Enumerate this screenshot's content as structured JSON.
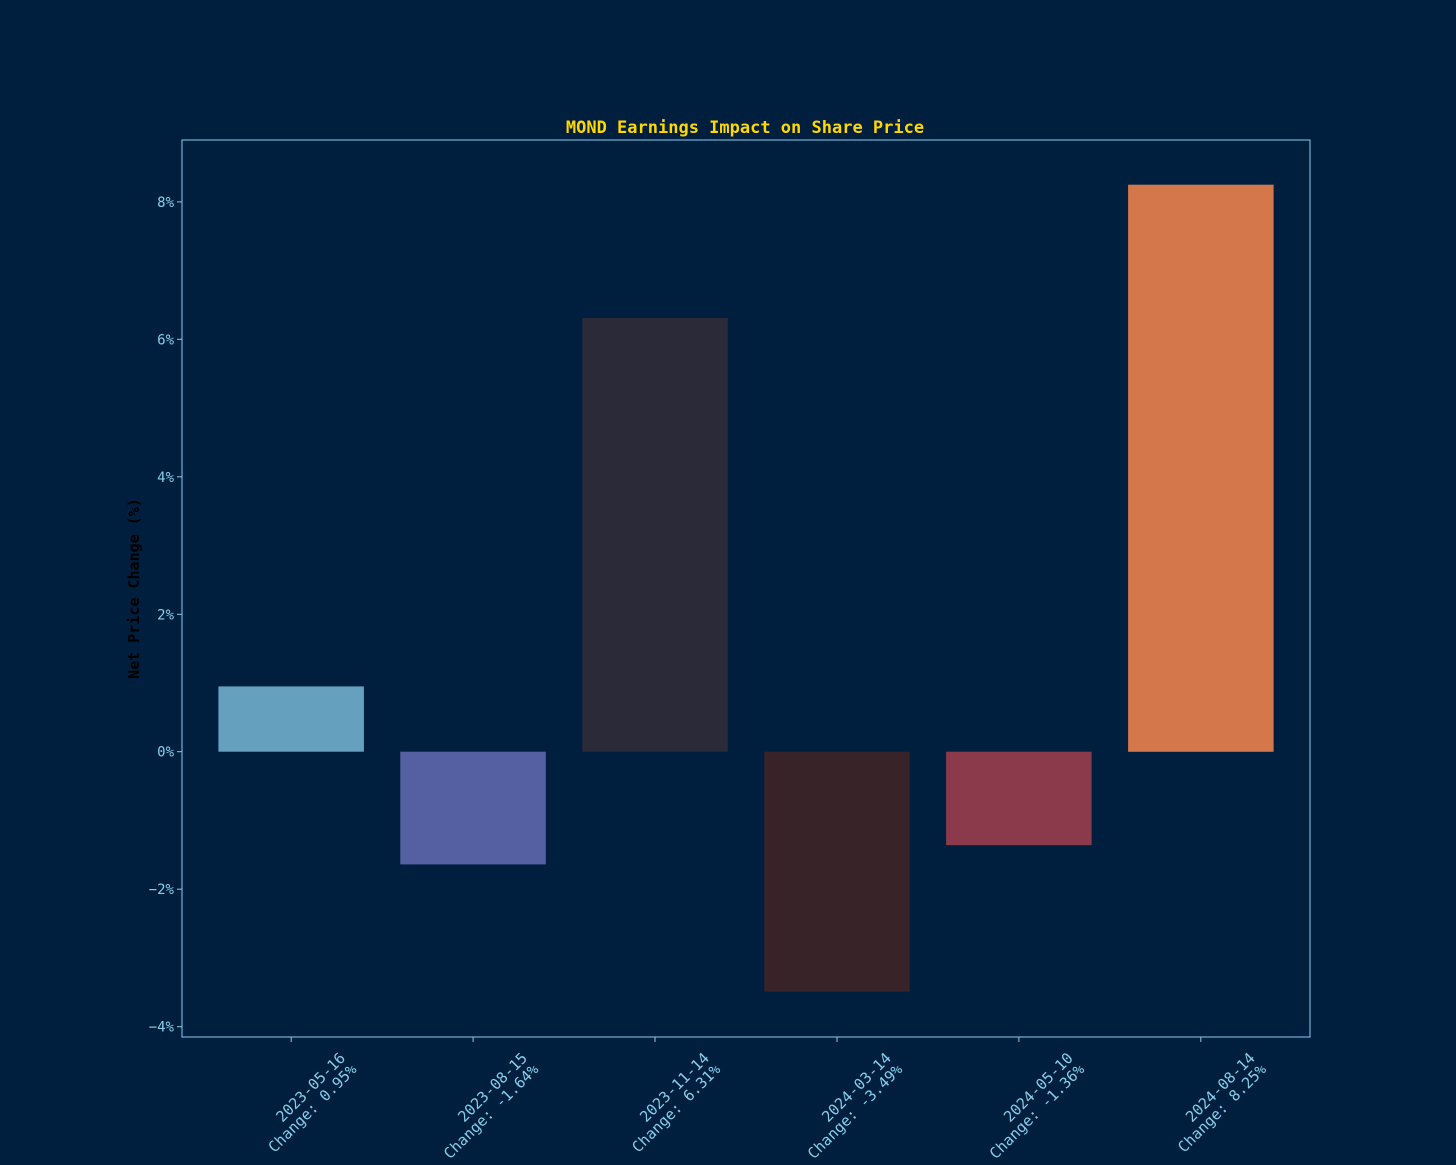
{
  "chart_data": {
    "type": "bar",
    "title": "MOND Earnings Impact on Share Price",
    "xlabel": "",
    "ylabel": "Net Price Change (%)",
    "ylim": [
      -4.15,
      8.9
    ],
    "yticks": [
      -4,
      -2,
      0,
      2,
      4,
      6,
      8
    ],
    "ytick_labels": [
      "−4%",
      "−2%",
      "0%",
      "2%",
      "4%",
      "6%",
      "8%"
    ],
    "categories": [
      [
        "2023-05-16",
        "Change: 0.95%"
      ],
      [
        "2023-08-15",
        "Change: -1.64%"
      ],
      [
        "2023-11-14",
        "Change: 6.31%"
      ],
      [
        "2024-03-14",
        "Change: -3.49%"
      ],
      [
        "2024-05-10",
        "Change: -1.36%"
      ],
      [
        "2024-08-14",
        "Change: 8.25%"
      ]
    ],
    "values": [
      0.95,
      -1.64,
      6.31,
      -3.49,
      -1.36,
      8.25
    ],
    "bar_colors": [
      "#66a0bf",
      "#5560a3",
      "#2a2a38",
      "#382428",
      "#8a3a4a",
      "#d4784c"
    ],
    "grid": false,
    "legend": "none"
  },
  "colors": {
    "background": "#001f3f",
    "title": "#ffd700",
    "axis": "#87ceeb",
    "ylabel": "#000000"
  }
}
